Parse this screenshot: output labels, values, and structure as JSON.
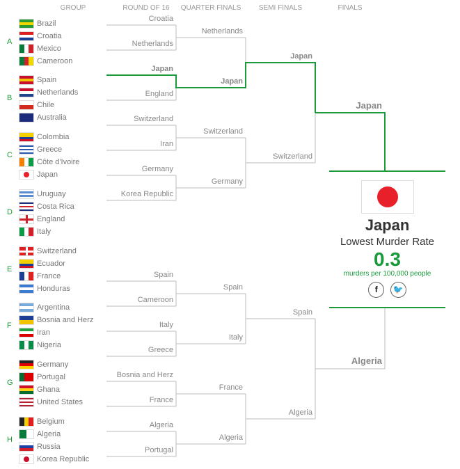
{
  "headers": [
    "GROUP",
    "ROUND OF 16",
    "QUARTER FINALS",
    "SEMI FINALS",
    "FINALS"
  ],
  "accent": "#1a9a3a",
  "groups": [
    {
      "letter": "A",
      "teams": [
        {
          "name": "Brazil",
          "flag": [
            "h",
            "#2a9a3a",
            "#f2d600",
            "#2a9a3a"
          ]
        },
        {
          "name": "Croatia",
          "flag": [
            "h",
            "#e02020",
            "#ffffff",
            "#1c3f94"
          ]
        },
        {
          "name": "Mexico",
          "flag": [
            "v",
            "#0a7a3a",
            "#ffffff",
            "#d0202a"
          ]
        },
        {
          "name": "Cameroon",
          "flag": [
            "v",
            "#0a7a3a",
            "#d0202a",
            "#f2d600"
          ]
        }
      ]
    },
    {
      "letter": "B",
      "teams": [
        {
          "name": "Spain",
          "flag": [
            "h",
            "#c8102e",
            "#f2c300",
            "#c8102e"
          ]
        },
        {
          "name": "Netherlands",
          "flag": [
            "h",
            "#c8102e",
            "#ffffff",
            "#21468b"
          ]
        },
        {
          "name": "Chile",
          "flag": [
            "h",
            "#ffffff",
            "#d52b1e"
          ]
        },
        {
          "name": "Australia",
          "flag": [
            "h",
            "#1c2a7a",
            "#1c2a7a"
          ]
        }
      ]
    },
    {
      "letter": "C",
      "teams": [
        {
          "name": "Colombia",
          "flag": [
            "h",
            "#f5d000",
            "#f5d000",
            "#1c3f94",
            "#ce1126"
          ]
        },
        {
          "name": "Greece",
          "flag": [
            "h",
            "#2a5ab0",
            "#ffffff",
            "#2a5ab0",
            "#ffffff",
            "#2a5ab0"
          ]
        },
        {
          "name": "Côte d'Ivoire",
          "flag": [
            "v",
            "#f77f00",
            "#ffffff",
            "#0a9a48"
          ]
        },
        {
          "name": "Japan",
          "flag": [
            "j",
            "#ffffff",
            "#e8202a"
          ]
        }
      ]
    },
    {
      "letter": "D",
      "teams": [
        {
          "name": "Uruguay",
          "flag": [
            "h",
            "#ffffff",
            "#5a8ad0",
            "#ffffff",
            "#5a8ad0",
            "#ffffff"
          ]
        },
        {
          "name": "Costa Rica",
          "flag": [
            "h",
            "#1c2a7a",
            "#ffffff",
            "#d0202a",
            "#ffffff",
            "#1c2a7a"
          ]
        },
        {
          "name": "England",
          "flag": [
            "x",
            "#ffffff",
            "#d0202a"
          ]
        },
        {
          "name": "Italy",
          "flag": [
            "v",
            "#0a9a48",
            "#ffffff",
            "#d0202a"
          ]
        }
      ]
    },
    {
      "letter": "E",
      "teams": [
        {
          "name": "Switzerland",
          "flag": [
            "x",
            "#e02020",
            "#ffffff"
          ]
        },
        {
          "name": "Ecuador",
          "flag": [
            "h",
            "#f5d000",
            "#f5d000",
            "#1c3f94",
            "#ce1126"
          ]
        },
        {
          "name": "France",
          "flag": [
            "v",
            "#1c3f94",
            "#ffffff",
            "#e02020"
          ]
        },
        {
          "name": "Honduras",
          "flag": [
            "h",
            "#3a7ad0",
            "#ffffff",
            "#3a7ad0"
          ]
        }
      ]
    },
    {
      "letter": "F",
      "teams": [
        {
          "name": "Argentina",
          "flag": [
            "h",
            "#75aadb",
            "#ffffff",
            "#75aadb"
          ]
        },
        {
          "name": "Bosnia and Herz",
          "flag": [
            "h",
            "#1c3f94",
            "#f2c300"
          ]
        },
        {
          "name": "Iran",
          "flag": [
            "h",
            "#239f40",
            "#ffffff",
            "#da0000"
          ]
        },
        {
          "name": "Nigeria",
          "flag": [
            "v",
            "#0a8a48",
            "#ffffff",
            "#0a8a48"
          ]
        }
      ]
    },
    {
      "letter": "G",
      "teams": [
        {
          "name": "Germany",
          "flag": [
            "h",
            "#222222",
            "#dd0000",
            "#ffce00"
          ]
        },
        {
          "name": "Portugal",
          "flag": [
            "v",
            "#0a6a30",
            "#da0000",
            "#da0000"
          ]
        },
        {
          "name": "Ghana",
          "flag": [
            "h",
            "#ce1126",
            "#fcd116",
            "#0a6a30"
          ]
        },
        {
          "name": "United States",
          "flag": [
            "h",
            "#b22234",
            "#ffffff",
            "#b22234",
            "#ffffff",
            "#b22234"
          ]
        }
      ]
    },
    {
      "letter": "H",
      "teams": [
        {
          "name": "Belgium",
          "flag": [
            "v",
            "#222222",
            "#f5d000",
            "#e02020"
          ]
        },
        {
          "name": "Algeria",
          "flag": [
            "v",
            "#0a7a3a",
            "#ffffff"
          ]
        },
        {
          "name": "Russia",
          "flag": [
            "h",
            "#ffffff",
            "#1c3fa4",
            "#d0202a"
          ]
        },
        {
          "name": "Korea Republic",
          "flag": [
            "j",
            "#ffffff",
            "#c8102e"
          ]
        }
      ]
    }
  ],
  "round_of_16": [
    "Croatia",
    "Netherlands",
    "Japan",
    "England",
    "Switzerland",
    "Iran",
    "Germany",
    "Korea Republic",
    "Spain",
    "Cameroon",
    "Italy",
    "Greece",
    "Bosnia and Herz",
    "France",
    "Algeria",
    "Portugal"
  ],
  "quarter_finals": [
    "Netherlands",
    "Japan",
    "Switzerland",
    "Germany",
    "Spain",
    "Italy",
    "France",
    "Algeria"
  ],
  "semi_finals": [
    "Japan",
    "Switzerland",
    "Spain",
    "Algeria"
  ],
  "finals": [
    "Japan",
    "Algeria"
  ],
  "winner": {
    "name": "Japan",
    "title": "Lowest Murder Rate",
    "value": "0.3",
    "unit": "murders per 100,000 people",
    "facebook": "f",
    "twitter": "t"
  }
}
